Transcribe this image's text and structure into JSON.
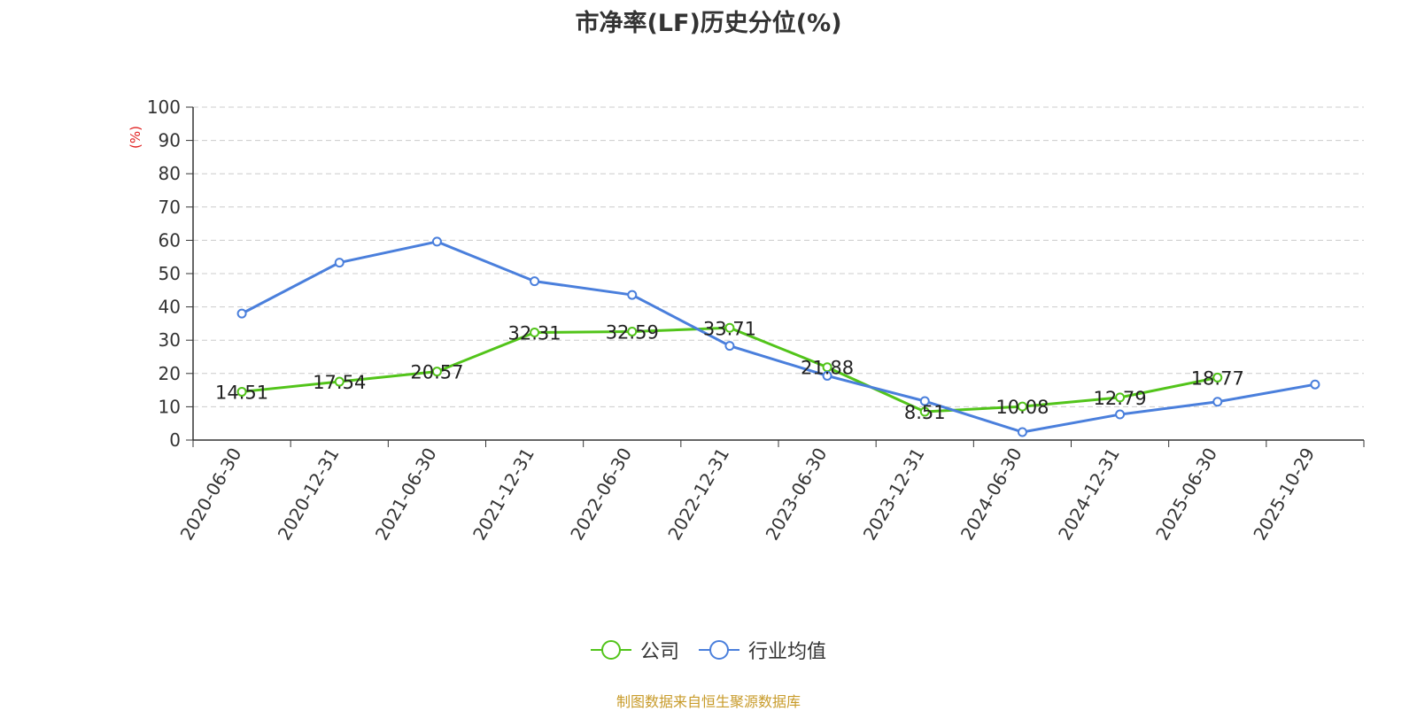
{
  "chart_data": {
    "type": "line",
    "title": "市净率(LF)历史分位(%)",
    "ylabel": "(%)",
    "xlabel": "",
    "ylim": [
      0,
      100
    ],
    "yticks": [
      0,
      10,
      20,
      30,
      40,
      50,
      60,
      70,
      80,
      90,
      100
    ],
    "grid": true,
    "legend_position": "bottom-center",
    "categories": [
      "2020-06-30",
      "2020-12-31",
      "2021-06-30",
      "2021-12-31",
      "2022-06-30",
      "2022-12-31",
      "2023-06-30",
      "2023-12-31",
      "2024-06-30",
      "2024-12-31",
      "2025-06-30",
      "2025-10-29"
    ],
    "series": [
      {
        "name": "公司",
        "color": "#52c41a",
        "values": [
          14.51,
          17.54,
          20.57,
          32.31,
          32.59,
          33.71,
          21.88,
          8.51,
          10.08,
          12.79,
          18.77,
          null
        ],
        "labels": [
          "14.51",
          "17.54",
          "20.57",
          "32.31",
          "32.59",
          "33.71",
          "21.88",
          "8.51",
          "10.08",
          "12.79",
          "18.77",
          ""
        ]
      },
      {
        "name": "行业均值",
        "color": "#4a7fdc",
        "values": [
          38.0,
          53.3,
          59.6,
          47.7,
          43.6,
          28.3,
          19.3,
          11.7,
          2.4,
          7.7,
          11.5,
          16.7
        ]
      }
    ]
  },
  "source_note": "制图数据来自恒生聚源数据库"
}
